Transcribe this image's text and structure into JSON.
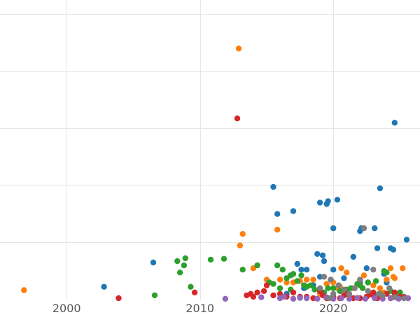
{
  "chart_data": {
    "type": "scatter",
    "title": "",
    "xlabel": "",
    "ylabel": "",
    "xlim": [
      1995,
      2026.5
    ],
    "ylim": [
      0,
      105
    ],
    "x_ticks": [
      2000,
      2010,
      2020
    ],
    "x_tick_labels": [
      "2000",
      "2010",
      "2020"
    ],
    "y_grid_values": [
      20,
      40,
      60,
      80,
      100
    ],
    "grid": true,
    "legend": "none",
    "colors": {
      "blue": "#1f77b4",
      "orange": "#ff7f0e",
      "green": "#2ca02c",
      "red": "#d62728",
      "purple": "#9467bd",
      "gray": "#7f7f7f",
      "gridline": "#e6e6e6",
      "tick_text": "#555555"
    },
    "series": [
      {
        "color": "#1f77b4",
        "points": [
          [
            2002.8,
            4.5
          ],
          [
            2006.5,
            13
          ],
          [
            2015.5,
            39.5
          ],
          [
            2015.8,
            30
          ],
          [
            2017.0,
            31
          ],
          [
            2017.3,
            12.5
          ],
          [
            2017.6,
            10.5
          ],
          [
            2018.0,
            10.5
          ],
          [
            2018.8,
            16
          ],
          [
            2019.0,
            34
          ],
          [
            2019.2,
            15.5
          ],
          [
            2019.3,
            13.5
          ],
          [
            2019.5,
            33.5
          ],
          [
            2019.6,
            34.5
          ],
          [
            2020.0,
            25
          ],
          [
            2020.0,
            10.5
          ],
          [
            2020.3,
            35
          ],
          [
            2020.8,
            7.5
          ],
          [
            2021.5,
            15
          ],
          [
            2022.0,
            24
          ],
          [
            2022.1,
            25
          ],
          [
            2022.5,
            11
          ],
          [
            2023.1,
            25
          ],
          [
            2023.3,
            18
          ],
          [
            2023.5,
            39
          ],
          [
            2023.8,
            9
          ],
          [
            2024.0,
            6
          ],
          [
            2024.3,
            18
          ],
          [
            2024.5,
            17.5
          ],
          [
            2024.6,
            62
          ],
          [
            2025.5,
            21
          ],
          [
            2018.5,
            5
          ],
          [
            2019.0,
            8
          ],
          [
            2020.5,
            3
          ],
          [
            2021.0,
            2
          ],
          [
            2022.0,
            6
          ],
          [
            2023.0,
            1.5
          ],
          [
            2025.0,
            2.5
          ],
          [
            2017.8,
            4
          ],
          [
            2016.5,
            2
          ]
        ]
      },
      {
        "color": "#ff7f0e",
        "points": [
          [
            1996.8,
            3.3
          ],
          [
            2013.0,
            19
          ],
          [
            2013.2,
            23
          ],
          [
            2012.9,
            88
          ],
          [
            2014.0,
            11
          ],
          [
            2015.0,
            7
          ],
          [
            2015.8,
            24.5
          ],
          [
            2016.0,
            7
          ],
          [
            2016.5,
            6
          ],
          [
            2017.0,
            6
          ],
          [
            2017.5,
            6.5
          ],
          [
            2018.0,
            7
          ],
          [
            2018.5,
            7
          ],
          [
            2019.5,
            5.5
          ],
          [
            2020.0,
            6
          ],
          [
            2020.3,
            4
          ],
          [
            2020.5,
            4.5
          ],
          [
            2020.6,
            11
          ],
          [
            2021.0,
            9.5
          ],
          [
            2021.5,
            4
          ],
          [
            2022.0,
            5
          ],
          [
            2022.3,
            8.5
          ],
          [
            2022.6,
            6
          ],
          [
            2023.0,
            5
          ],
          [
            2023.5,
            4
          ],
          [
            2024.0,
            7
          ],
          [
            2024.3,
            11
          ],
          [
            2024.5,
            8
          ],
          [
            2024.6,
            7.5
          ],
          [
            2025.2,
            11
          ],
          [
            2019.0,
            2
          ],
          [
            2023.8,
            2.5
          ]
        ]
      },
      {
        "color": "#2ca02c",
        "points": [
          [
            2006.6,
            1.5
          ],
          [
            2008.3,
            13.5
          ],
          [
            2008.5,
            9.5
          ],
          [
            2008.8,
            12
          ],
          [
            2008.9,
            14.5
          ],
          [
            2009.3,
            4.5
          ],
          [
            2010.8,
            14
          ],
          [
            2011.8,
            14.3
          ],
          [
            2013.2,
            10.5
          ],
          [
            2014.3,
            12
          ],
          [
            2015.2,
            6
          ],
          [
            2015.5,
            5.5
          ],
          [
            2015.8,
            12
          ],
          [
            2016.0,
            4
          ],
          [
            2016.2,
            10.5
          ],
          [
            2016.5,
            7.5
          ],
          [
            2016.8,
            3.5
          ],
          [
            2017.0,
            9
          ],
          [
            2017.3,
            6.5
          ],
          [
            2017.6,
            8.5
          ],
          [
            2017.8,
            5
          ],
          [
            2018.0,
            4.5
          ],
          [
            2018.3,
            5
          ],
          [
            2018.6,
            3.5
          ],
          [
            2019.0,
            3
          ],
          [
            2019.3,
            2.5
          ],
          [
            2019.6,
            4
          ],
          [
            2020.0,
            4
          ],
          [
            2020.5,
            3
          ],
          [
            2021.0,
            3.5
          ],
          [
            2021.3,
            4
          ],
          [
            2021.8,
            5.5
          ],
          [
            2022.0,
            5
          ],
          [
            2022.2,
            4
          ],
          [
            2022.6,
            6
          ],
          [
            2023.2,
            6.5
          ],
          [
            2023.5,
            2
          ],
          [
            2023.8,
            10
          ],
          [
            2024.0,
            9.5
          ],
          [
            2024.3,
            3
          ],
          [
            2024.6,
            1.5
          ],
          [
            2025.0,
            2.5
          ],
          [
            2025.3,
            1
          ],
          [
            2016.8,
            8.5
          ]
        ]
      },
      {
        "color": "#d62728",
        "points": [
          [
            2003.9,
            0.5
          ],
          [
            2009.6,
            2.5
          ],
          [
            2012.8,
            63.5
          ],
          [
            2013.5,
            1.5
          ],
          [
            2013.8,
            2
          ],
          [
            2014.0,
            1
          ],
          [
            2014.3,
            2.5
          ],
          [
            2014.8,
            3
          ],
          [
            2015.0,
            5
          ],
          [
            2015.5,
            1.5
          ],
          [
            2016.0,
            2
          ],
          [
            2016.5,
            1
          ],
          [
            2017.0,
            2.5
          ],
          [
            2017.5,
            1
          ],
          [
            2018.0,
            1
          ],
          [
            2018.5,
            0.5
          ],
          [
            2019.0,
            3
          ],
          [
            2019.5,
            0.5
          ],
          [
            2020.0,
            1
          ],
          [
            2020.5,
            0.5
          ],
          [
            2021.0,
            2
          ],
          [
            2021.5,
            0.5
          ],
          [
            2022.0,
            0.5
          ],
          [
            2022.5,
            1
          ],
          [
            2023.0,
            2.5
          ],
          [
            2023.3,
            0.5
          ],
          [
            2023.6,
            1
          ],
          [
            2024.0,
            2
          ],
          [
            2024.3,
            0.5
          ],
          [
            2024.6,
            2.5
          ],
          [
            2025.0,
            1
          ],
          [
            2025.3,
            0.8
          ],
          [
            2025.6,
            0.5
          ],
          [
            2019.2,
            1.5
          ],
          [
            2020.8,
            1.5
          ],
          [
            2022.8,
            1.8
          ]
        ]
      },
      {
        "color": "#9467bd",
        "points": [
          [
            2011.9,
            0.3
          ],
          [
            2014.6,
            0.8
          ],
          [
            2016.0,
            0.5
          ],
          [
            2016.3,
            1
          ],
          [
            2017.0,
            0.3
          ],
          [
            2017.5,
            0.6
          ],
          [
            2018.0,
            0.5
          ],
          [
            2018.8,
            0.3
          ],
          [
            2019.5,
            0.8
          ],
          [
            2020.0,
            0.3
          ],
          [
            2020.6,
            0.5
          ],
          [
            2021.2,
            0.3
          ],
          [
            2021.8,
            0.6
          ],
          [
            2022.4,
            0.3
          ],
          [
            2023.1,
            0.5
          ],
          [
            2023.7,
            0.3
          ],
          [
            2024.3,
            0.6
          ],
          [
            2024.9,
            0.3
          ],
          [
            2025.6,
            0.5
          ]
        ]
      },
      {
        "color": "#7f7f7f",
        "points": [
          [
            2019.0,
            4
          ],
          [
            2019.3,
            8
          ],
          [
            2019.8,
            7
          ],
          [
            2020.0,
            2
          ],
          [
            2020.4,
            5
          ],
          [
            2020.8,
            3.5
          ],
          [
            2021.2,
            2
          ],
          [
            2021.6,
            4
          ],
          [
            2022.0,
            7
          ],
          [
            2022.3,
            25
          ],
          [
            2022.6,
            3
          ],
          [
            2023.0,
            10.5
          ],
          [
            2023.4,
            2
          ],
          [
            2023.7,
            1.5
          ],
          [
            2024.2,
            4
          ],
          [
            2024.6,
            0.8
          ],
          [
            2025.3,
            0.5
          ],
          [
            2019.7,
            0.5
          ]
        ]
      }
    ]
  }
}
